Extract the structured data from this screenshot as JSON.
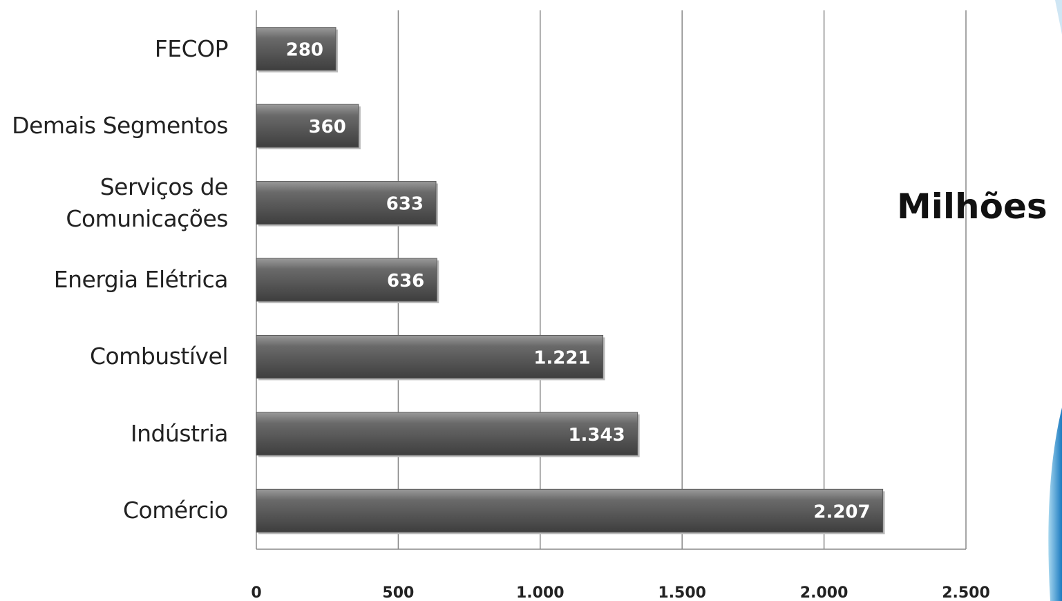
{
  "chart_data": {
    "type": "hbar",
    "categories": [
      "FECOP",
      "Demais Segmentos",
      "Serviços de Comunicações",
      "Energia Elétrica",
      "Combustível",
      "Indústria",
      "Comércio"
    ],
    "values": [
      280,
      360,
      633,
      636,
      1221,
      1343,
      2207
    ],
    "value_labels": [
      "280",
      "360",
      "633",
      "636",
      "1.221",
      "1.343",
      "2.207"
    ],
    "color": "#5a5a5a",
    "xlabel": "Milhões",
    "xlim": [
      0,
      2500
    ],
    "xticks": [
      0,
      500,
      {
        "value": 1000,
        "label": "1.000"
      },
      {
        "value": 1500,
        "label": "1.500"
      },
      {
        "value": 2000,
        "label": "2.000"
      },
      {
        "value": 2500,
        "label": "2.500"
      }
    ],
    "grid": true
  }
}
